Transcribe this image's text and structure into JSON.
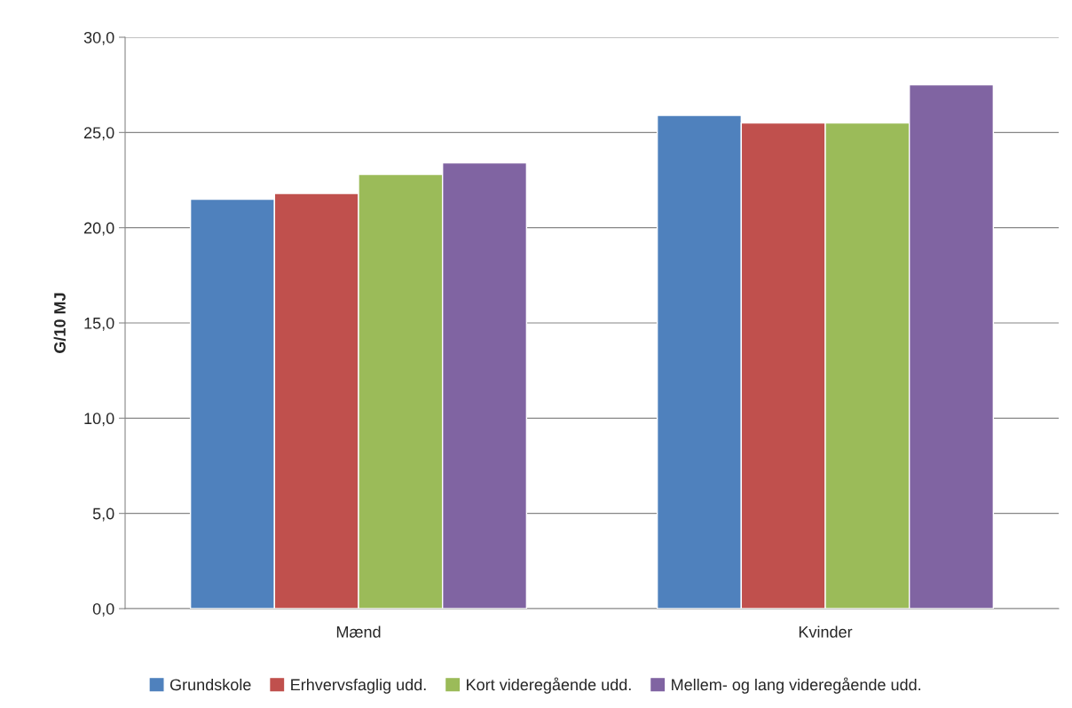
{
  "chart_data": {
    "type": "bar",
    "ylabel": "G/10 MJ",
    "categories": [
      "Mænd",
      "Kvinder"
    ],
    "series": [
      {
        "name": "Grundskole",
        "color": "#4f81bd",
        "values": [
          21.5,
          25.9
        ]
      },
      {
        "name": "Erhvervsfaglig udd.",
        "color": "#c0504d",
        "values": [
          21.8,
          25.5
        ]
      },
      {
        "name": "Kort videregående udd.",
        "color": "#9bbb59",
        "values": [
          22.8,
          25.5
        ]
      },
      {
        "name": "Mellem- og lang videregående udd.",
        "color": "#8064a2",
        "values": [
          23.4,
          27.5
        ]
      }
    ],
    "ylim": [
      0,
      30
    ],
    "yticks": [
      {
        "value": 0,
        "label": "0,0"
      },
      {
        "value": 5,
        "label": "5,0"
      },
      {
        "value": 10,
        "label": "10,0"
      },
      {
        "value": 15,
        "label": "15,0"
      },
      {
        "value": 20,
        "label": "20,0"
      },
      {
        "value": 25,
        "label": "25,0"
      },
      {
        "value": 30,
        "label": "30,0"
      }
    ],
    "grid": "y",
    "legend": "bottom"
  }
}
